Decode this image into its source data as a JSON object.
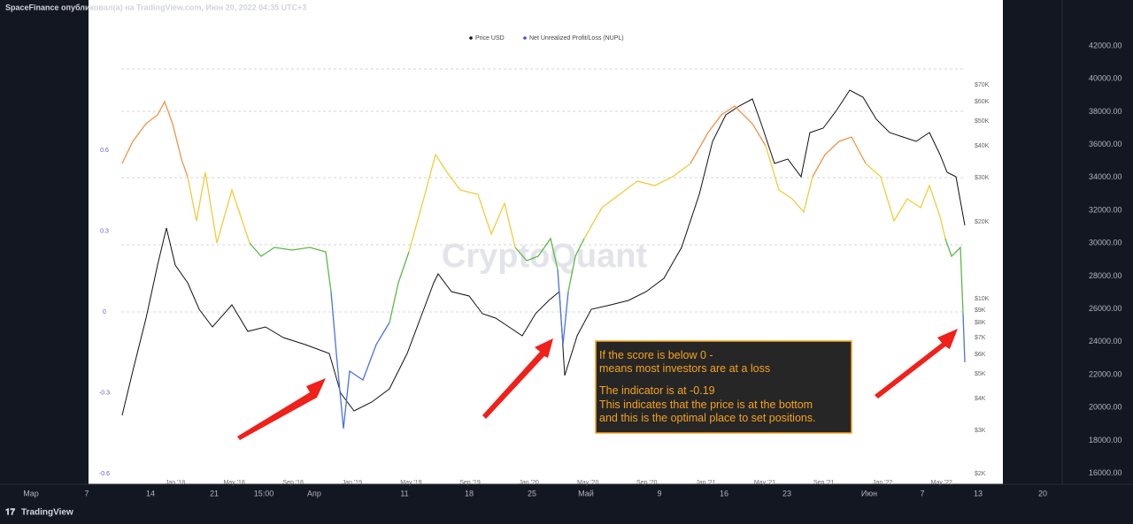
{
  "header": {
    "title": "SpaceFinance опубликовал(а) на TradingView.com, Июн 20, 2022 04:35 UTC+3"
  },
  "price_axis": [
    "42000.00",
    "40000.00",
    "38000.00",
    "36000.00",
    "34000.00",
    "32000.00",
    "30000.00",
    "28000.00",
    "26000.00",
    "24000.00",
    "22000.00",
    "20000.00",
    "18000.00",
    "16000.00"
  ],
  "time_axis": [
    "Мар",
    "7",
    "14",
    "21",
    "15:00",
    "Апр",
    "11",
    "18",
    "25",
    "Май",
    "9",
    "16",
    "23",
    "Июн",
    "7",
    "13",
    "20"
  ],
  "footer": {
    "brand": "TradingView"
  },
  "embedded_chart": {
    "legend": [
      "Price USD",
      "Net Unrealized Profit/Loss (NUPL)"
    ],
    "watermark": "CryptoQuant",
    "left_axis": [
      "0.6",
      "0.3",
      "0",
      "-0.3",
      "-0.6"
    ],
    "right_axis": [
      "$70K",
      "$60K",
      "$50K",
      "$40K",
      "$30K",
      "$20K",
      "$10K",
      "$9K",
      "$8K",
      "$7K",
      "$6K",
      "$5K",
      "$4K",
      "$3K",
      "$2K"
    ],
    "x_axis": [
      "Jan '18",
      "May '18",
      "Sep '18",
      "Jan '19",
      "May '19",
      "Sep '19",
      "Jan '20",
      "May '20",
      "Sep '20",
      "Jan '21",
      "May '21",
      "Sep '21",
      "Jan '22",
      "May '22"
    ],
    "annotation": [
      "If the score is below 0 -",
      "means most investors are at a loss",
      "The indicator is at -0.19",
      "This indicates that the price is at the bottom",
      "and this is the optimal place to set positions."
    ]
  }
}
